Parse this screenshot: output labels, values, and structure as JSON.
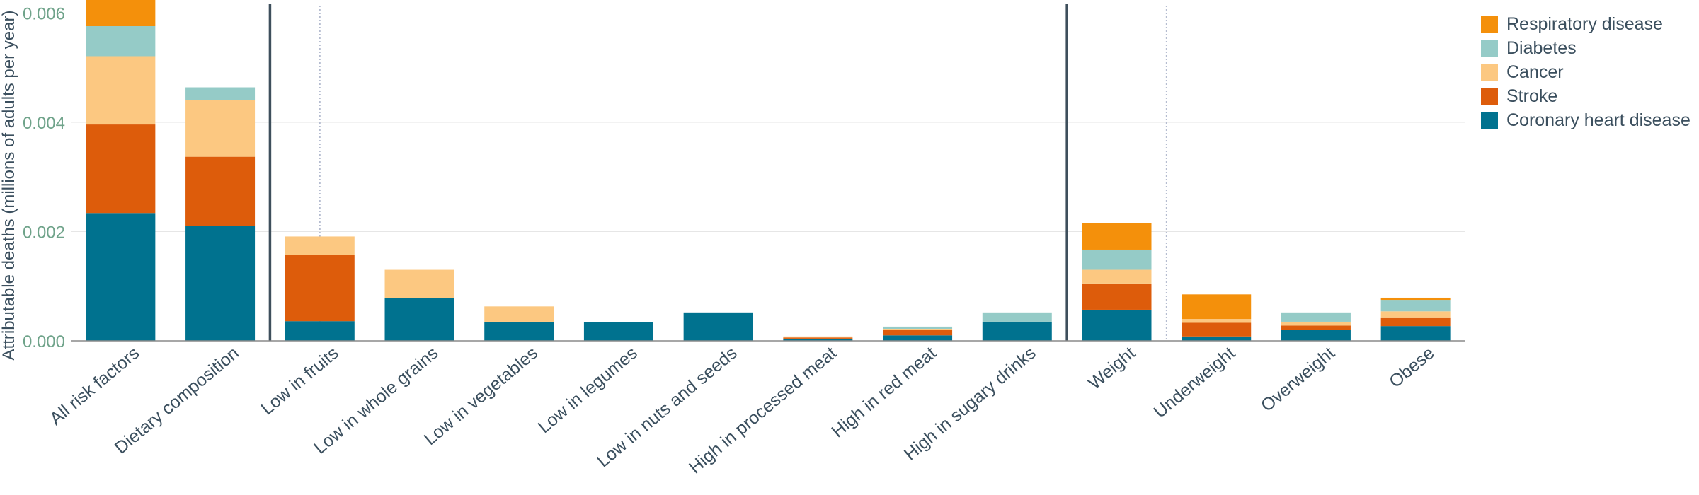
{
  "chart_data": {
    "type": "bar",
    "stacked": true,
    "ylabel": "Attributable deaths (millions of adults per year)",
    "ylim": [
      0,
      0.0062
    ],
    "yticks": [
      "0.000",
      "0.002",
      "0.004",
      "0.006"
    ],
    "ytick_values": [
      0,
      0.002,
      0.004,
      0.006
    ],
    "grid": true,
    "legend_position": "top-right",
    "categories": [
      "All risk factors",
      "Dietary composition",
      "Low in fruits",
      "Low in whole grains",
      "Low in vegetables",
      "Low in legumes",
      "Low in nuts and seeds",
      "High in processed meat",
      "High in red meat",
      "High in sugary drinks",
      "Weight",
      "Underweight",
      "Overweight",
      "Obese"
    ],
    "series": [
      {
        "name": "Coronary heart disease",
        "color": "#00728f",
        "values": [
          0.00234,
          0.0021,
          0.00036,
          0.00078,
          0.00035,
          0.00034,
          0.00052,
          4e-05,
          0.0001,
          0.00035,
          0.00057,
          8e-05,
          0.0002,
          0.00027
        ]
      },
      {
        "name": "Stroke",
        "color": "#dd5c0b",
        "values": [
          0.00162,
          0.00127,
          0.00121,
          0.0,
          0.0,
          0.0,
          0.0,
          2e-05,
          0.0001,
          0.0,
          0.00048,
          0.00025,
          8e-05,
          0.00016
        ]
      },
      {
        "name": "Cancer",
        "color": "#fcc881",
        "values": [
          0.00125,
          0.00104,
          0.00034,
          0.00052,
          0.00028,
          0.0,
          0.0,
          2e-05,
          2e-05,
          0.0,
          0.00025,
          7e-05,
          7e-05,
          0.00011
        ]
      },
      {
        "name": "Diabetes",
        "color": "#95cbc7",
        "values": [
          0.00055,
          0.00023,
          0.0,
          0.0,
          0.0,
          0.0,
          0.0,
          0.0,
          4e-05,
          0.00017,
          0.00037,
          0.0,
          0.00017,
          0.00021
        ]
      },
      {
        "name": "Respiratory disease",
        "color": "#f4900b",
        "values": [
          0.00048,
          0.0,
          0.0,
          0.0,
          0.0,
          0.0,
          0.0,
          0.0,
          0.0,
          0.0,
          0.00048,
          0.00045,
          0.0,
          4e-05
        ]
      }
    ],
    "separators": [
      {
        "after_index": 1,
        "style": "solid"
      },
      {
        "after_index": 9,
        "style": "solid"
      },
      {
        "after_index": 1.5,
        "style": "dotted"
      },
      {
        "after_index": 10,
        "style": "dotted"
      }
    ],
    "legend_order": [
      "Respiratory disease",
      "Diabetes",
      "Cancer",
      "Stroke",
      "Coronary heart disease"
    ]
  }
}
